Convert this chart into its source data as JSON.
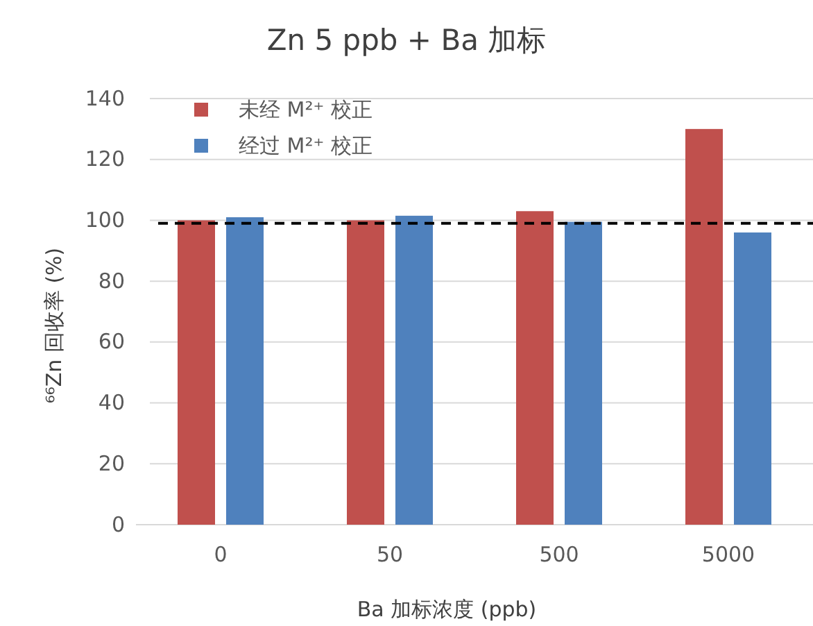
{
  "chart_data": {
    "type": "bar",
    "title": "Zn 5 ppb + Ba 加标",
    "xlabel": "Ba 加标浓度 (ppb)",
    "ylabel": "⁶⁶Zn 回收率 (%)",
    "categories": [
      "0",
      "50",
      "500",
      "5000"
    ],
    "series": [
      {
        "name": "未经 M²⁺ 校正",
        "color": "#c0504d",
        "values": [
          100,
          100,
          103,
          130
        ]
      },
      {
        "name": "经过 M²⁺ 校正",
        "color": "#4f81bd",
        "values": [
          101,
          101.5,
          99.5,
          96
        ]
      }
    ],
    "ylim": [
      0,
      140
    ],
    "yticks": [
      0,
      20,
      40,
      60,
      80,
      100,
      120,
      140
    ],
    "grid": "y",
    "legend": "top left",
    "ref_lines": [
      {
        "axis": "y",
        "value": 99,
        "color": "#000000",
        "line_style": "dashed"
      }
    ]
  }
}
